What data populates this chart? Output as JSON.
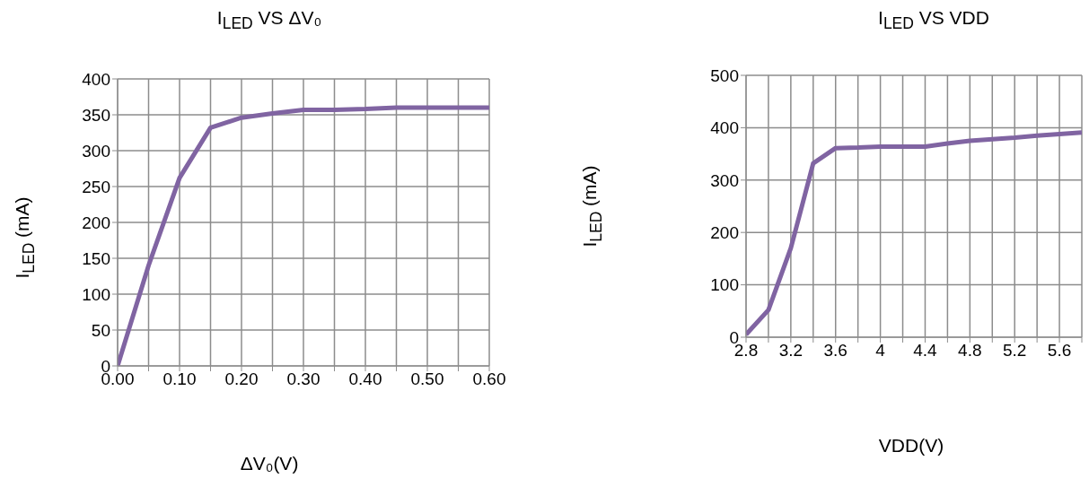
{
  "chart_data": [
    {
      "type": "line",
      "title": "I$_{LED}$ VS  ΔV₀",
      "xlabel": "ΔV₀(V)",
      "ylabel": "I$_{LED}$ (mA)",
      "x": [
        0,
        0.05,
        0.1,
        0.15,
        0.2,
        0.25,
        0.3,
        0.35,
        0.4,
        0.45,
        0.5,
        0.55,
        0.6
      ],
      "series": [
        {
          "color": "#8064a2",
          "values": [
            0,
            140,
            262,
            332,
            346,
            352,
            357,
            357,
            358,
            360,
            360,
            360,
            360
          ]
        }
      ],
      "xlim": [
        0,
        0.6
      ],
      "xticks": [
        {
          "value": 0,
          "label": "0.00"
        },
        {
          "value": 0.05,
          "label": null
        },
        {
          "value": 0.1,
          "label": "0.10"
        },
        {
          "value": 0.15,
          "label": null
        },
        {
          "value": 0.2,
          "label": "0.20"
        },
        {
          "value": 0.25,
          "label": null
        },
        {
          "value": 0.3,
          "label": "0.30"
        },
        {
          "value": 0.35,
          "label": null
        },
        {
          "value": 0.4,
          "label": "0.40"
        },
        {
          "value": 0.45,
          "label": null
        },
        {
          "value": 0.5,
          "label": "0.50"
        },
        {
          "value": 0.55,
          "label": null
        },
        {
          "value": 0.6,
          "label": "0.60"
        }
      ],
      "ylim": [
        0,
        400
      ],
      "yticks": [
        0,
        50,
        100,
        150,
        200,
        250,
        300,
        350,
        400
      ],
      "grid": true,
      "marker": "none"
    },
    {
      "type": "line",
      "title": "I$_{LED}$ VS VDD",
      "xlabel": "VDD(V)",
      "ylabel": "I$_{LED}$ (mA)",
      "x": [
        2.8,
        3.0,
        3.2,
        3.4,
        3.6,
        3.8,
        4.0,
        4.2,
        4.4,
        4.6,
        4.8,
        5.0,
        5.2,
        5.4,
        5.6,
        5.8
      ],
      "series": [
        {
          "color": "#8064a2",
          "values": [
            5,
            52,
            170,
            332,
            361,
            362,
            364,
            364,
            364,
            370,
            375,
            378,
            381,
            385,
            388,
            391
          ]
        }
      ],
      "xlim": [
        2.8,
        5.8
      ],
      "xticks": [
        2.8,
        {
          "value": 3.0,
          "label": null
        },
        3.2,
        {
          "value": 3.4,
          "label": null
        },
        3.6,
        {
          "value": 3.8,
          "label": null
        },
        4,
        {
          "value": 4.2,
          "label": null
        },
        4.4,
        {
          "value": 4.6,
          "label": null
        },
        4.8,
        {
          "value": 5.0,
          "label": null
        },
        5.2,
        {
          "value": 5.4,
          "label": null
        },
        5.6,
        {
          "value": 5.8,
          "label": null
        }
      ],
      "ylim": [
        0,
        500
      ],
      "yticks": [
        0,
        100,
        200,
        300,
        400,
        500
      ],
      "grid": true,
      "marker": "none"
    }
  ]
}
